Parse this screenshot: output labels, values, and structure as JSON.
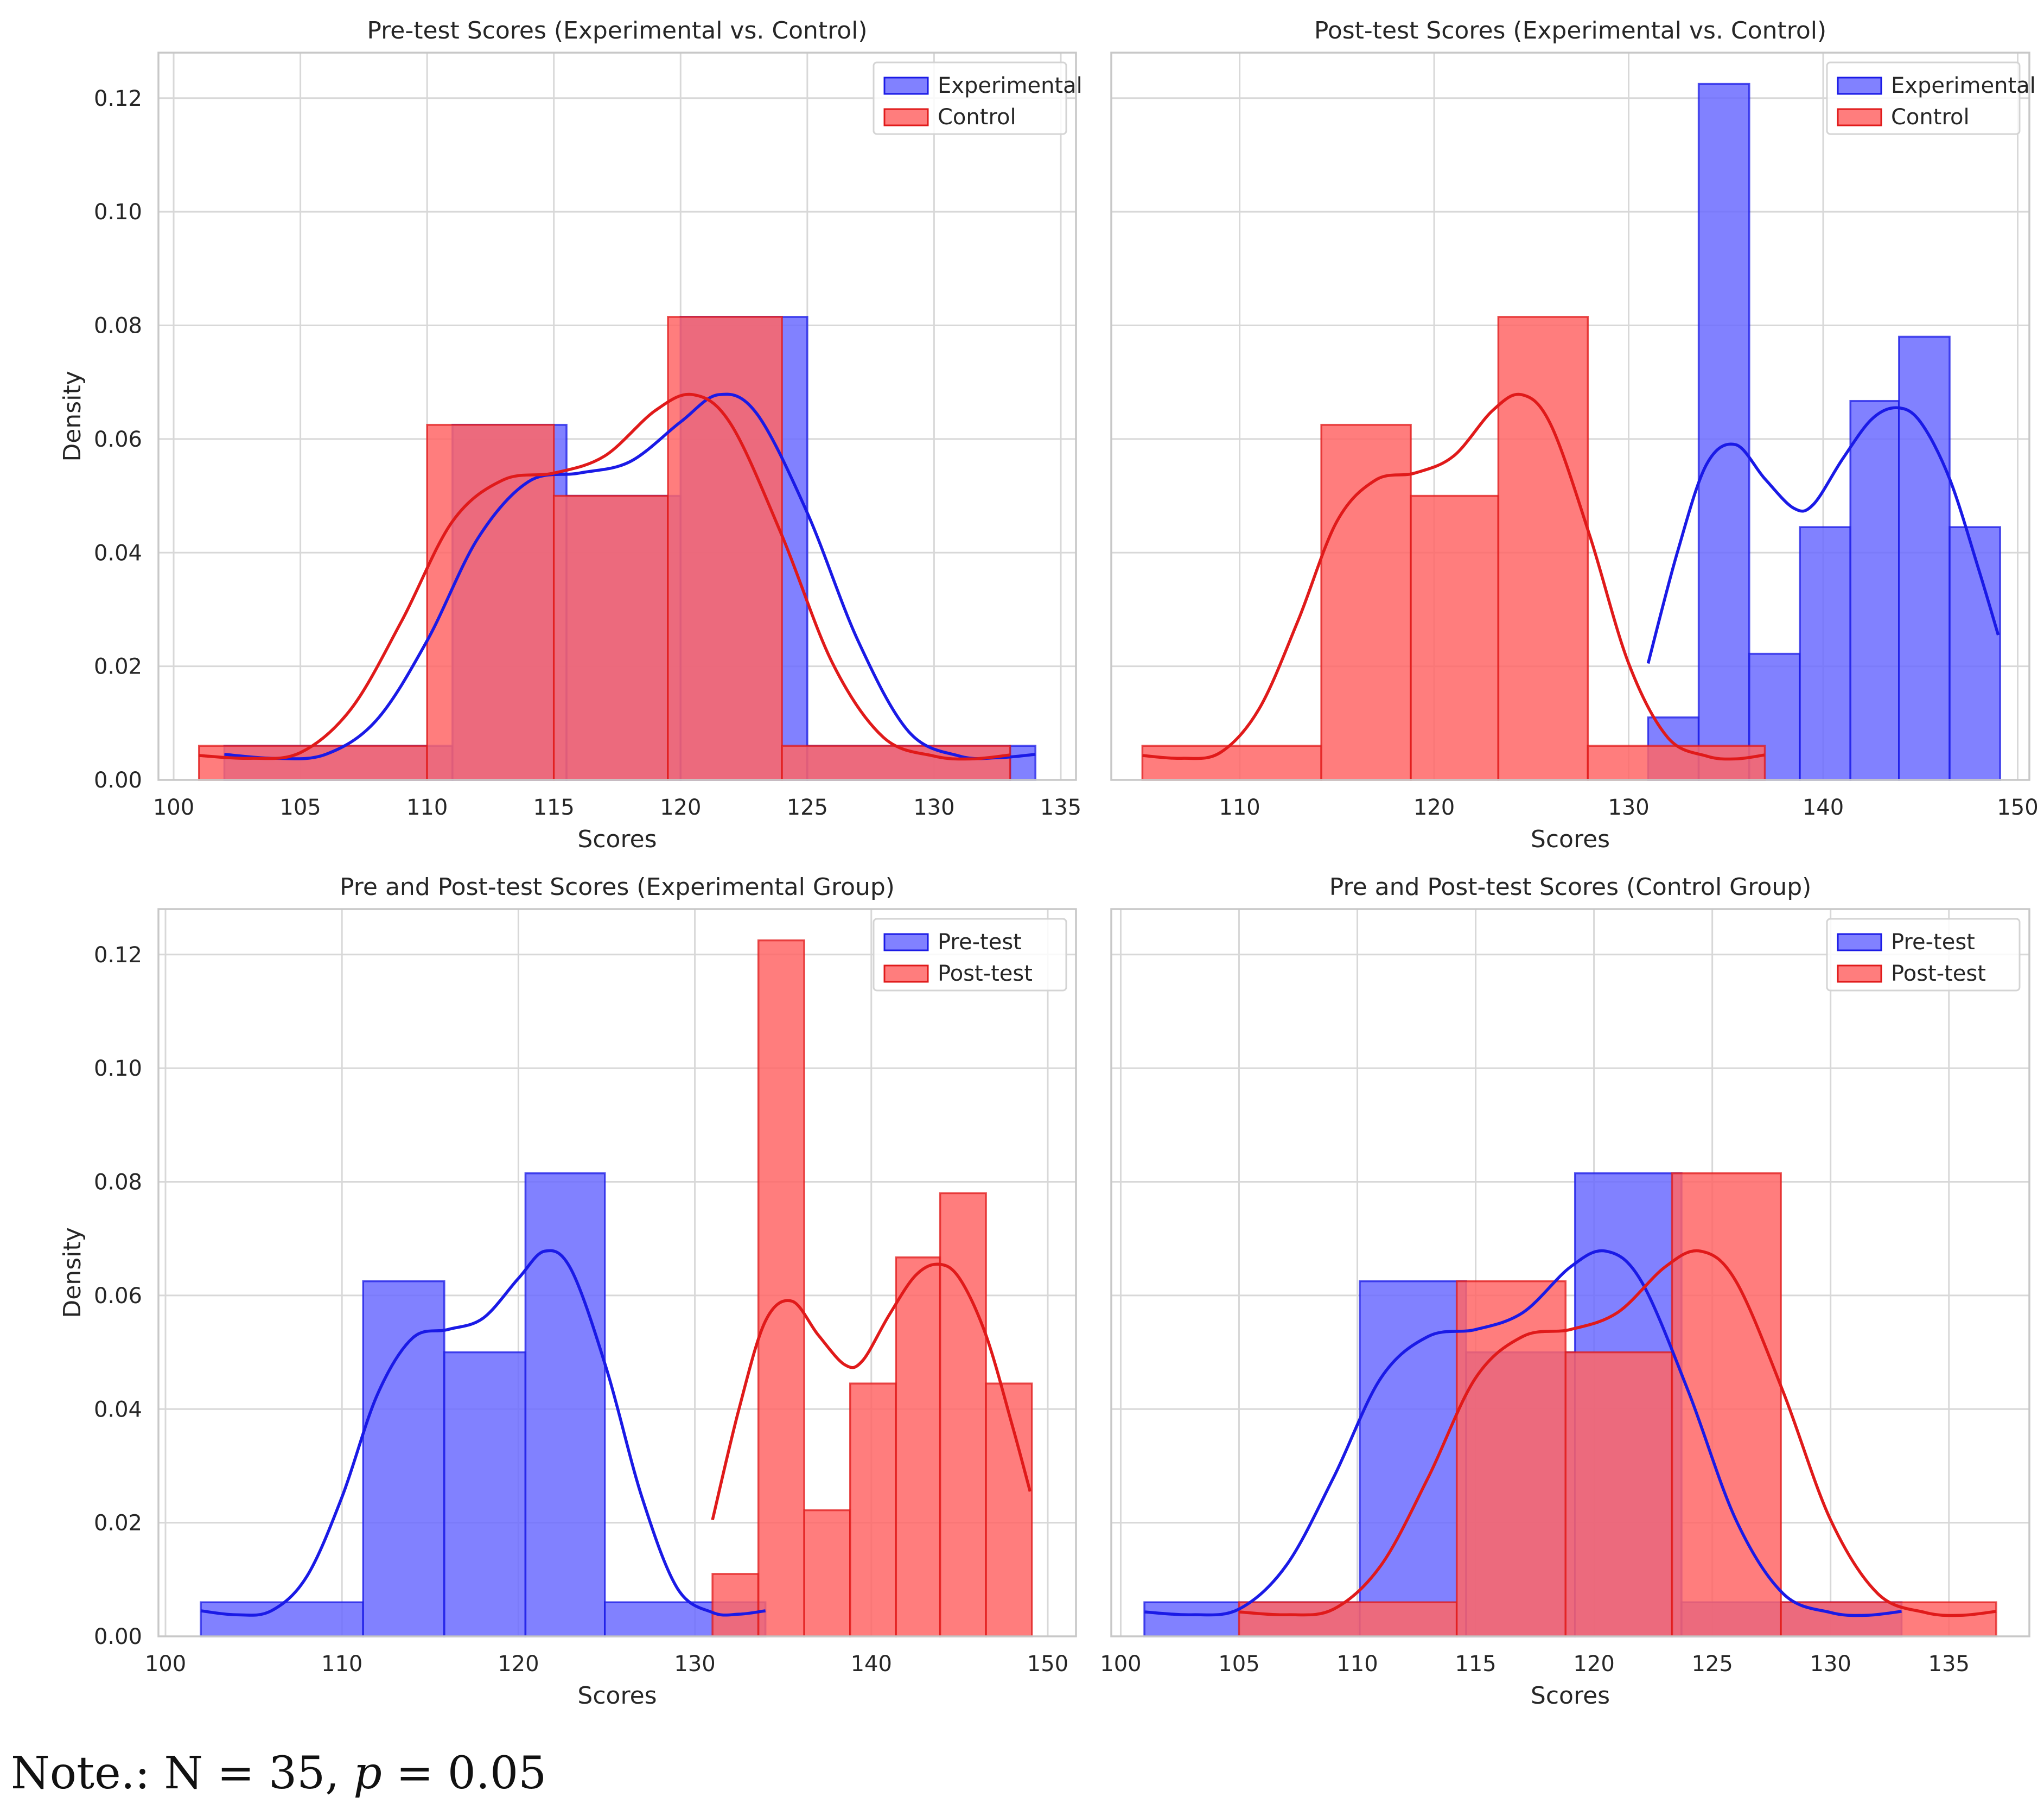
{
  "figure": {
    "background": "#ffffff",
    "grid_color": "#d8d8d8",
    "axis_color": "#c8c8c8",
    "text_color": "#262626"
  },
  "colors": {
    "blue_fill": "#6b6bff",
    "blue_line": "#1a1ae6",
    "red_fill": "#ff6666",
    "red_line": "#e01a1a"
  },
  "note": {
    "prefix": "Note.: N = 35, ",
    "p_symbol": "p",
    "suffix": " = 0.05"
  },
  "chart_data": [
    {
      "type": "histogram",
      "title": "Pre-test Scores (Experimental vs. Control)",
      "xlabel": "Scores",
      "ylabel": "Density",
      "xlim": [
        99.4,
        135.6
      ],
      "ylim": [
        0,
        0.128
      ],
      "xticks": [
        100,
        105,
        110,
        115,
        120,
        125,
        130,
        135
      ],
      "yticks": [
        0.0,
        0.02,
        0.04,
        0.06,
        0.08,
        0.1,
        0.12
      ],
      "show_yticklabels": true,
      "legend": "top-right",
      "series": [
        {
          "name": "Experimental",
          "color": "blue",
          "bins": [
            [
              102,
              111,
              0.006
            ],
            [
              111,
              115.5,
              0.0625
            ],
            [
              115.5,
              120,
              0.05
            ],
            [
              120,
              125,
              0.0815
            ],
            [
              125,
              133,
              0.006
            ],
            [
              133,
              134,
              0.006
            ]
          ],
          "kde": [
            [
              102,
              0.0045
            ],
            [
              104,
              0.0038
            ],
            [
              106,
              0.0045
            ],
            [
              108,
              0.0105
            ],
            [
              110,
              0.0245
            ],
            [
              112,
              0.0425
            ],
            [
              114,
              0.0525
            ],
            [
              116,
              0.054
            ],
            [
              118,
              0.056
            ],
            [
              120,
              0.063
            ],
            [
              121.5,
              0.0678
            ],
            [
              123,
              0.0645
            ],
            [
              125,
              0.047
            ],
            [
              127,
              0.0245
            ],
            [
              129,
              0.0085
            ],
            [
              131,
              0.0042
            ],
            [
              132.5,
              0.0039
            ],
            [
              134,
              0.0045
            ]
          ]
        },
        {
          "name": "Control",
          "color": "red",
          "bins": [
            [
              101,
              110,
              0.006
            ],
            [
              110,
              115,
              0.0625
            ],
            [
              115,
              119.5,
              0.05
            ],
            [
              119.5,
              124,
              0.0815
            ],
            [
              124,
              133,
              0.006
            ]
          ],
          "kde": [
            [
              101,
              0.0043
            ],
            [
              103,
              0.0038
            ],
            [
              105,
              0.0048
            ],
            [
              107,
              0.0125
            ],
            [
              109,
              0.028
            ],
            [
              111,
              0.0455
            ],
            [
              113,
              0.0528
            ],
            [
              115,
              0.054
            ],
            [
              117,
              0.057
            ],
            [
              119,
              0.065
            ],
            [
              120.5,
              0.0678
            ],
            [
              122,
              0.0625
            ],
            [
              124,
              0.043
            ],
            [
              126,
              0.0205
            ],
            [
              128,
              0.0075
            ],
            [
              130,
              0.0042
            ],
            [
              131.5,
              0.0037
            ],
            [
              133,
              0.0044
            ]
          ]
        }
      ]
    },
    {
      "type": "histogram",
      "title": "Post-test Scores (Experimental vs. Control)",
      "xlabel": "Scores",
      "ylabel": "",
      "xlim": [
        103.4,
        150.6
      ],
      "ylim": [
        0,
        0.128
      ],
      "xticks": [
        110,
        120,
        130,
        140,
        150
      ],
      "yticks": [
        0.0,
        0.02,
        0.04,
        0.06,
        0.08,
        0.1,
        0.12
      ],
      "show_yticklabels": false,
      "legend": "top-right",
      "series": [
        {
          "name": "Experimental",
          "color": "blue",
          "bins": [
            [
              131,
              133.6,
              0.011
            ],
            [
              133.6,
              136.2,
              0.1225
            ],
            [
              136.2,
              138.8,
              0.0222
            ],
            [
              138.8,
              141.4,
              0.0445
            ],
            [
              141.4,
              143.9,
              0.0667
            ],
            [
              143.9,
              146.5,
              0.078
            ],
            [
              146.5,
              149.1,
              0.0445
            ]
          ],
          "kde": [
            [
              131,
              0.0205
            ],
            [
              132.5,
              0.04
            ],
            [
              134,
              0.0555
            ],
            [
              135.5,
              0.059
            ],
            [
              137,
              0.053
            ],
            [
              138.5,
              0.0478
            ],
            [
              139.5,
              0.0485
            ],
            [
              141,
              0.0565
            ],
            [
              142.5,
              0.0635
            ],
            [
              143.8,
              0.0655
            ],
            [
              145,
              0.063
            ],
            [
              146.5,
              0.053
            ],
            [
              148,
              0.037
            ],
            [
              149,
              0.0255
            ]
          ]
        },
        {
          "name": "Control",
          "color": "red",
          "bins": [
            [
              105,
              114.2,
              0.006
            ],
            [
              114.2,
              118.8,
              0.0625
            ],
            [
              118.8,
              123.3,
              0.05
            ],
            [
              123.3,
              127.9,
              0.0815
            ],
            [
              127.9,
              137,
              0.006
            ]
          ],
          "kde": [
            [
              105,
              0.0043
            ],
            [
              107,
              0.0038
            ],
            [
              109,
              0.0048
            ],
            [
              111,
              0.0125
            ],
            [
              113,
              0.028
            ],
            [
              115,
              0.0455
            ],
            [
              117,
              0.0528
            ],
            [
              119,
              0.054
            ],
            [
              121,
              0.057
            ],
            [
              123,
              0.065
            ],
            [
              124.5,
              0.0678
            ],
            [
              126,
              0.0625
            ],
            [
              128,
              0.043
            ],
            [
              130,
              0.0205
            ],
            [
              132,
              0.0075
            ],
            [
              134,
              0.0042
            ],
            [
              135.5,
              0.0037
            ],
            [
              137,
              0.0044
            ]
          ]
        }
      ]
    },
    {
      "type": "histogram",
      "title": "Pre and Post-test Scores (Experimental Group)",
      "xlabel": "Scores",
      "ylabel": "Density",
      "xlim": [
        99.6,
        151.6
      ],
      "ylim": [
        0,
        0.128
      ],
      "xticks": [
        100,
        110,
        120,
        130,
        140,
        150
      ],
      "yticks": [
        0.0,
        0.02,
        0.04,
        0.06,
        0.08,
        0.1,
        0.12
      ],
      "show_yticklabels": true,
      "legend": "top-right",
      "series": [
        {
          "name": "Pre-test",
          "color": "blue",
          "bins": [
            [
              102,
              111.2,
              0.006
            ],
            [
              111.2,
              115.8,
              0.0625
            ],
            [
              115.8,
              120.4,
              0.05
            ],
            [
              120.4,
              124.9,
              0.0815
            ],
            [
              124.9,
              134,
              0.006
            ]
          ],
          "kde": [
            [
              102,
              0.0045
            ],
            [
              104,
              0.0038
            ],
            [
              106,
              0.0045
            ],
            [
              108,
              0.0105
            ],
            [
              110,
              0.0245
            ],
            [
              112,
              0.0425
            ],
            [
              114,
              0.0525
            ],
            [
              116,
              0.054
            ],
            [
              118,
              0.056
            ],
            [
              120,
              0.063
            ],
            [
              121.5,
              0.0678
            ],
            [
              123,
              0.0645
            ],
            [
              125,
              0.047
            ],
            [
              127,
              0.0245
            ],
            [
              129,
              0.0085
            ],
            [
              131,
              0.0042
            ],
            [
              132.5,
              0.0039
            ],
            [
              134,
              0.0045
            ]
          ]
        },
        {
          "name": "Post-test",
          "color": "red",
          "bins": [
            [
              131,
              133.6,
              0.011
            ],
            [
              133.6,
              136.2,
              0.1225
            ],
            [
              136.2,
              138.8,
              0.0222
            ],
            [
              138.8,
              141.4,
              0.0445
            ],
            [
              141.4,
              143.9,
              0.0667
            ],
            [
              143.9,
              146.5,
              0.078
            ],
            [
              146.5,
              149.1,
              0.0445
            ]
          ],
          "kde": [
            [
              131,
              0.0205
            ],
            [
              132.5,
              0.04
            ],
            [
              134,
              0.0555
            ],
            [
              135.5,
              0.059
            ],
            [
              137,
              0.053
            ],
            [
              138.5,
              0.0478
            ],
            [
              139.5,
              0.0485
            ],
            [
              141,
              0.0565
            ],
            [
              142.5,
              0.0635
            ],
            [
              143.8,
              0.0655
            ],
            [
              145,
              0.063
            ],
            [
              146.5,
              0.053
            ],
            [
              148,
              0.037
            ],
            [
              149,
              0.0255
            ]
          ]
        }
      ]
    },
    {
      "type": "histogram",
      "title": "Pre and Post-test Scores (Control Group)",
      "xlabel": "Scores",
      "ylabel": "",
      "xlim": [
        99.6,
        138.4
      ],
      "ylim": [
        0,
        0.128
      ],
      "xticks": [
        100,
        105,
        110,
        115,
        120,
        125,
        130,
        135
      ],
      "yticks": [
        0.0,
        0.02,
        0.04,
        0.06,
        0.08,
        0.1,
        0.12
      ],
      "show_yticklabels": false,
      "legend": "top-right",
      "series": [
        {
          "name": "Pre-test",
          "color": "blue",
          "bins": [
            [
              101,
              110.1,
              0.006
            ],
            [
              110.1,
              114.6,
              0.0625
            ],
            [
              114.6,
              119.2,
              0.05
            ],
            [
              119.2,
              123.7,
              0.0815
            ],
            [
              123.7,
              133,
              0.006
            ]
          ],
          "kde": [
            [
              101,
              0.0043
            ],
            [
              103,
              0.0038
            ],
            [
              105,
              0.0048
            ],
            [
              107,
              0.0125
            ],
            [
              109,
              0.028
            ],
            [
              111,
              0.0455
            ],
            [
              113,
              0.0528
            ],
            [
              115,
              0.054
            ],
            [
              117,
              0.057
            ],
            [
              119,
              0.065
            ],
            [
              120.5,
              0.0678
            ],
            [
              122,
              0.0625
            ],
            [
              124,
              0.043
            ],
            [
              126,
              0.0205
            ],
            [
              128,
              0.0075
            ],
            [
              130,
              0.0042
            ],
            [
              131.5,
              0.0037
            ],
            [
              133,
              0.0044
            ]
          ]
        },
        {
          "name": "Post-test",
          "color": "red",
          "bins": [
            [
              105,
              114.2,
              0.006
            ],
            [
              114.2,
              118.8,
              0.0625
            ],
            [
              118.8,
              123.3,
              0.05
            ],
            [
              123.3,
              127.9,
              0.0815
            ],
            [
              127.9,
              137,
              0.006
            ]
          ],
          "kde": [
            [
              105,
              0.0043
            ],
            [
              107,
              0.0038
            ],
            [
              109,
              0.0048
            ],
            [
              111,
              0.0125
            ],
            [
              113,
              0.028
            ],
            [
              115,
              0.0455
            ],
            [
              117,
              0.0528
            ],
            [
              119,
              0.054
            ],
            [
              121,
              0.057
            ],
            [
              123,
              0.065
            ],
            [
              124.5,
              0.0678
            ],
            [
              126,
              0.0625
            ],
            [
              128,
              0.043
            ],
            [
              130,
              0.0205
            ],
            [
              132,
              0.0075
            ],
            [
              134,
              0.0042
            ],
            [
              135.5,
              0.0037
            ],
            [
              137,
              0.0044
            ]
          ]
        }
      ]
    }
  ]
}
